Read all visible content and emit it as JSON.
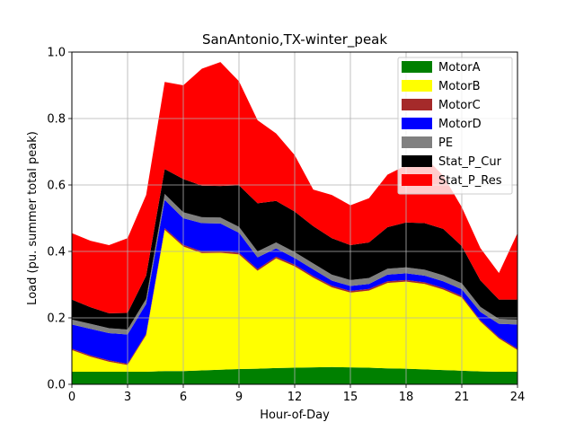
{
  "chart_data": {
    "type": "area",
    "title": "SanAntonio,TX-winter_peak",
    "xlabel": "Hour-of-Day",
    "ylabel": "Load (pu. summer total peak)",
    "xlim": [
      0,
      24
    ],
    "ylim": [
      0,
      1.0
    ],
    "xticks": [
      0,
      3,
      6,
      9,
      12,
      15,
      18,
      21,
      24
    ],
    "yticks": [
      0.0,
      0.2,
      0.4,
      0.6,
      0.8,
      1.0
    ],
    "xtick_labels": [
      "0",
      "3",
      "6",
      "9",
      "12",
      "15",
      "18",
      "21",
      "24"
    ],
    "ytick_labels": [
      "0.0",
      "0.2",
      "0.4",
      "0.6",
      "0.8",
      "1.0"
    ],
    "grid": true,
    "stacked": true,
    "legend_position": "top-right",
    "x": [
      0,
      1,
      2,
      3,
      4,
      5,
      6,
      7,
      8,
      9,
      10,
      11,
      12,
      13,
      14,
      15,
      16,
      17,
      18,
      19,
      20,
      21,
      22,
      23,
      24
    ],
    "series": [
      {
        "name": "MotorA",
        "color": "#008000",
        "values": [
          0.038,
          0.038,
          0.038,
          0.038,
          0.038,
          0.04,
          0.04,
          0.042,
          0.044,
          0.046,
          0.047,
          0.049,
          0.05,
          0.051,
          0.052,
          0.051,
          0.05,
          0.048,
          0.047,
          0.045,
          0.043,
          0.041,
          0.039,
          0.038,
          0.038
        ]
      },
      {
        "name": "MotorB",
        "color": "#ffff00",
        "values": [
          0.065,
          0.045,
          0.03,
          0.02,
          0.11,
          0.425,
          0.375,
          0.353,
          0.352,
          0.345,
          0.295,
          0.33,
          0.305,
          0.27,
          0.24,
          0.225,
          0.232,
          0.257,
          0.262,
          0.257,
          0.242,
          0.22,
          0.15,
          0.1,
          0.065
        ]
      },
      {
        "name": "MotorC",
        "color": "#a52a2a",
        "values": [
          0.004,
          0.004,
          0.004,
          0.004,
          0.004,
          0.005,
          0.005,
          0.005,
          0.005,
          0.005,
          0.005,
          0.005,
          0.005,
          0.005,
          0.005,
          0.005,
          0.005,
          0.005,
          0.005,
          0.005,
          0.005,
          0.005,
          0.004,
          0.004,
          0.004
        ]
      },
      {
        "name": "MotorD",
        "color": "#0000ff",
        "values": [
          0.073,
          0.08,
          0.082,
          0.088,
          0.09,
          0.085,
          0.08,
          0.085,
          0.083,
          0.06,
          0.035,
          0.025,
          0.02,
          0.02,
          0.015,
          0.015,
          0.015,
          0.02,
          0.02,
          0.02,
          0.02,
          0.02,
          0.025,
          0.04,
          0.073
        ]
      },
      {
        "name": "PE",
        "color": "#808080",
        "values": [
          0.015,
          0.015,
          0.015,
          0.015,
          0.015,
          0.018,
          0.018,
          0.018,
          0.018,
          0.018,
          0.018,
          0.018,
          0.018,
          0.018,
          0.018,
          0.018,
          0.018,
          0.018,
          0.018,
          0.018,
          0.018,
          0.018,
          0.015,
          0.015,
          0.015
        ]
      },
      {
        "name": "Stat_P_Cur",
        "color": "#000000",
        "values": [
          0.06,
          0.05,
          0.045,
          0.05,
          0.07,
          0.075,
          0.1,
          0.095,
          0.095,
          0.125,
          0.145,
          0.125,
          0.122,
          0.112,
          0.11,
          0.105,
          0.107,
          0.125,
          0.135,
          0.14,
          0.14,
          0.112,
          0.08,
          0.058,
          0.06
        ]
      },
      {
        "name": "Stat_P_Res",
        "color": "#ff0000",
        "values": [
          0.2,
          0.2,
          0.205,
          0.225,
          0.243,
          0.262,
          0.282,
          0.352,
          0.373,
          0.313,
          0.25,
          0.203,
          0.17,
          0.11,
          0.13,
          0.12,
          0.133,
          0.158,
          0.172,
          0.2,
          0.16,
          0.117,
          0.097,
          0.08,
          0.2
        ]
      }
    ]
  }
}
